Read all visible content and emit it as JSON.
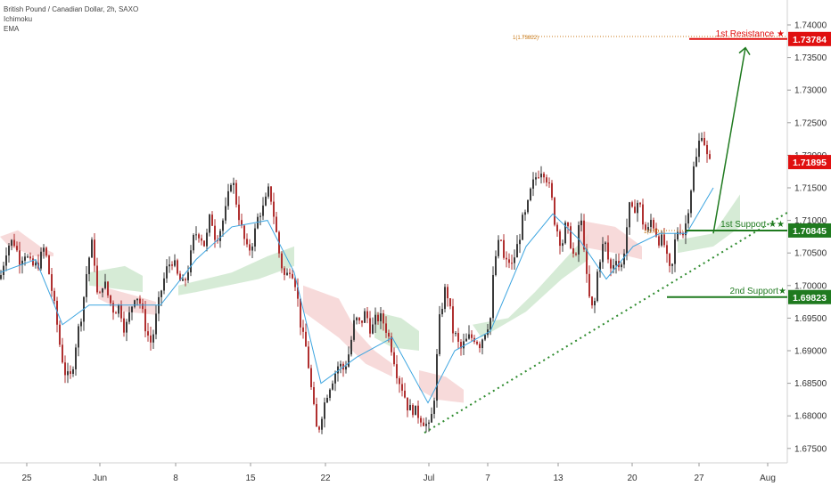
{
  "header": {
    "symbol_line": "British Pound / Canadian Dollar, 2h, SAXO",
    "indicator_1": "Ichimoku",
    "indicator_2": "EMA"
  },
  "colors": {
    "up_candle": "#3a3a3a",
    "down_candle": "#b03030",
    "ema": "#3da5e0",
    "cloud_bull": "#cfe8cf",
    "cloud_bear": "#f6d4d4",
    "resistance": "#e01010",
    "support": "#1f7a1f",
    "arrow": "#1f7a1f",
    "trendline": "#2e8b2e",
    "fib_label": "#c87a1a"
  },
  "chart_data": {
    "type": "candlestick",
    "title": "British Pound / Canadian Dollar, 2h, SAXO",
    "x_labels": [
      "25",
      "Jun",
      "8",
      "15",
      "22",
      "Jul",
      "7",
      "13",
      "20",
      "27",
      "Aug"
    ],
    "y_ticks": [
      "1.74000",
      "1.73500",
      "1.73000",
      "1.72500",
      "1.72000",
      "1.71500",
      "1.71000",
      "1.70500",
      "1.70000",
      "1.69500",
      "1.69000",
      "1.68500",
      "1.68000",
      "1.67500"
    ],
    "ylim": [
      1.672,
      1.744
    ],
    "close_path": [
      [
        0,
        1.701
      ],
      [
        8,
        1.706
      ],
      [
        15,
        1.707
      ],
      [
        22,
        1.704
      ],
      [
        28,
        1.705
      ],
      [
        35,
        1.703
      ],
      [
        42,
        1.703
      ],
      [
        50,
        1.706
      ],
      [
        56,
        1.701
      ],
      [
        62,
        1.696
      ],
      [
        68,
        1.69
      ],
      [
        74,
        1.686
      ],
      [
        80,
        1.686
      ],
      [
        86,
        1.692
      ],
      [
        92,
        1.696
      ],
      [
        98,
        1.703
      ],
      [
        104,
        1.707
      ],
      [
        110,
        1.697
      ],
      [
        116,
        1.701
      ],
      [
        122,
        1.698
      ],
      [
        128,
        1.696
      ],
      [
        134,
        1.697
      ],
      [
        140,
        1.693
      ],
      [
        146,
        1.696
      ],
      [
        152,
        1.699
      ],
      [
        158,
        1.697
      ],
      [
        164,
        1.693
      ],
      [
        170,
        1.691
      ],
      [
        176,
        1.696
      ],
      [
        182,
        1.7
      ],
      [
        188,
        1.703
      ],
      [
        194,
        1.704
      ],
      [
        200,
        1.701
      ],
      [
        206,
        1.7
      ],
      [
        212,
        1.703
      ],
      [
        218,
        1.708
      ],
      [
        224,
        1.708
      ],
      [
        230,
        1.706
      ],
      [
        236,
        1.711
      ],
      [
        242,
        1.707
      ],
      [
        248,
        1.709
      ],
      [
        254,
        1.712
      ],
      [
        260,
        1.717
      ],
      [
        266,
        1.712
      ],
      [
        272,
        1.708
      ],
      [
        278,
        1.705
      ],
      [
        284,
        1.707
      ],
      [
        290,
        1.711
      ],
      [
        296,
        1.712
      ],
      [
        302,
        1.715
      ],
      [
        308,
        1.71
      ],
      [
        314,
        1.704
      ],
      [
        320,
        1.701
      ],
      [
        326,
        1.703
      ],
      [
        332,
        1.7
      ],
      [
        338,
        1.693
      ],
      [
        344,
        1.69
      ],
      [
        350,
        1.683
      ],
      [
        356,
        1.677
      ],
      [
        362,
        1.681
      ],
      [
        368,
        1.684
      ],
      [
        374,
        1.686
      ],
      [
        380,
        1.688
      ],
      [
        386,
        1.687
      ],
      [
        392,
        1.69
      ],
      [
        398,
        1.695
      ],
      [
        404,
        1.694
      ],
      [
        410,
        1.696
      ],
      [
        416,
        1.693
      ],
      [
        422,
        1.695
      ],
      [
        428,
        1.695
      ],
      [
        434,
        1.693
      ],
      [
        440,
        1.69
      ],
      [
        446,
        1.686
      ],
      [
        452,
        1.684
      ],
      [
        458,
        1.681
      ],
      [
        464,
        1.681
      ],
      [
        470,
        1.68
      ],
      [
        476,
        1.679
      ],
      [
        482,
        1.678
      ],
      [
        488,
        1.684
      ],
      [
        492,
        1.694
      ],
      [
        496,
        1.697
      ],
      [
        500,
        1.7
      ],
      [
        504,
        1.697
      ],
      [
        508,
        1.693
      ],
      [
        512,
        1.692
      ],
      [
        516,
        1.69
      ],
      [
        520,
        1.691
      ],
      [
        526,
        1.692
      ],
      [
        532,
        1.692
      ],
      [
        538,
        1.691
      ],
      [
        544,
        1.693
      ],
      [
        550,
        1.695
      ],
      [
        554,
        1.703
      ],
      [
        558,
        1.706
      ],
      [
        562,
        1.707
      ],
      [
        566,
        1.703
      ],
      [
        570,
        1.704
      ],
      [
        574,
        1.703
      ],
      [
        578,
        1.705
      ],
      [
        582,
        1.707
      ],
      [
        586,
        1.71
      ],
      [
        590,
        1.711
      ],
      [
        596,
        1.715
      ],
      [
        602,
        1.717
      ],
      [
        608,
        1.718
      ],
      [
        612,
        1.717
      ],
      [
        618,
        1.714
      ],
      [
        622,
        1.71
      ],
      [
        626,
        1.708
      ],
      [
        630,
        1.706
      ],
      [
        634,
        1.709
      ],
      [
        638,
        1.708
      ],
      [
        642,
        1.705
      ],
      [
        646,
        1.704
      ],
      [
        650,
        1.711
      ],
      [
        654,
        1.708
      ],
      [
        658,
        1.701
      ],
      [
        662,
        1.697
      ],
      [
        666,
        1.696
      ],
      [
        670,
        1.702
      ],
      [
        674,
        1.705
      ],
      [
        678,
        1.707
      ],
      [
        682,
        1.704
      ],
      [
        686,
        1.702
      ],
      [
        690,
        1.705
      ],
      [
        694,
        1.703
      ],
      [
        698,
        1.703
      ],
      [
        702,
        1.708
      ],
      [
        706,
        1.712
      ],
      [
        710,
        1.711
      ],
      [
        714,
        1.713
      ],
      [
        718,
        1.712
      ],
      [
        722,
        1.709
      ],
      [
        726,
        1.708
      ],
      [
        730,
        1.71
      ],
      [
        734,
        1.709
      ],
      [
        738,
        1.707
      ],
      [
        742,
        1.707
      ],
      [
        746,
        1.706
      ],
      [
        750,
        1.702
      ],
      [
        754,
        1.703
      ],
      [
        758,
        1.708
      ],
      [
        762,
        1.709
      ],
      [
        766,
        1.708
      ],
      [
        770,
        1.71
      ],
      [
        774,
        1.714
      ],
      [
        778,
        1.718
      ],
      [
        782,
        1.72
      ],
      [
        786,
        1.724
      ],
      [
        790,
        1.722
      ],
      [
        794,
        1.719
      ],
      [
        798,
        1.7185
      ]
    ],
    "ema_path": [
      [
        0,
        1.702
      ],
      [
        40,
        1.704
      ],
      [
        70,
        1.694
      ],
      [
        100,
        1.697
      ],
      [
        140,
        1.697
      ],
      [
        180,
        1.697
      ],
      [
        220,
        1.704
      ],
      [
        260,
        1.709
      ],
      [
        300,
        1.71
      ],
      [
        330,
        1.702
      ],
      [
        360,
        1.685
      ],
      [
        400,
        1.689
      ],
      [
        440,
        1.692
      ],
      [
        480,
        1.682
      ],
      [
        510,
        1.69
      ],
      [
        550,
        1.693
      ],
      [
        590,
        1.706
      ],
      [
        620,
        1.711
      ],
      [
        650,
        1.707
      ],
      [
        680,
        1.701
      ],
      [
        710,
        1.706
      ],
      [
        740,
        1.708
      ],
      [
        770,
        1.708
      ],
      [
        800,
        1.715
      ]
    ],
    "annotations": {
      "resistance_1": {
        "label": "1st Resistance ★",
        "value": 1.73784,
        "value_label": "1.73784"
      },
      "last_price": {
        "value": 1.71895,
        "value_label": "1.71895"
      },
      "support_1": {
        "label": "1st Support ★★",
        "value": 1.70845,
        "value_label": "1.70845"
      },
      "support_2": {
        "label": "2nd Support★",
        "value": 1.69823,
        "value_label": "1.69823"
      },
      "fib_top": {
        "label": "1(1.73822)",
        "value": 1.73822
      },
      "fib_support": {
        "label": "1(1.70...)",
        "value": 1.70845
      }
    }
  }
}
